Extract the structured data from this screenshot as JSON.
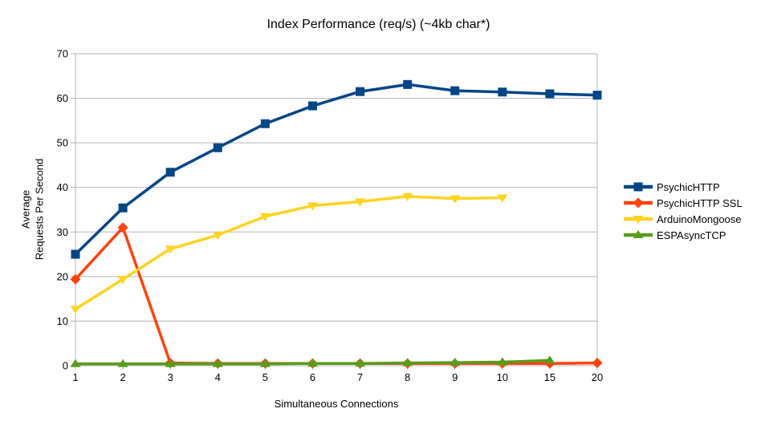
{
  "chart_data": {
    "type": "line",
    "title": "Index Performance (req/s) (~4kb char*)",
    "xlabel": "Simultaneous Connections",
    "ylabel_lines": [
      "Average",
      "Requests Per Second"
    ],
    "categories": [
      "1",
      "2",
      "3",
      "4",
      "5",
      "6",
      "7",
      "8",
      "9",
      "10",
      "15",
      "20"
    ],
    "ylim": [
      0,
      70
    ],
    "yticks": [
      0,
      10,
      20,
      30,
      40,
      50,
      60,
      70
    ],
    "grid": "horizontal-only",
    "legend_position": "right",
    "axis_color": "#b3b3b3",
    "text_color": "#000000",
    "background_color": "#ffffff",
    "series": [
      {
        "name": "PsychicHTTP",
        "color": "#004586",
        "marker": "square",
        "values": [
          25.0,
          35.4,
          43.4,
          48.9,
          54.3,
          58.3,
          61.5,
          63.1,
          61.7,
          61.4,
          61.0,
          60.7
        ]
      },
      {
        "name": "PsychicHTTP SSL",
        "color": "#ff420e",
        "marker": "diamond",
        "values": [
          19.4,
          31.0,
          0.6,
          0.5,
          0.5,
          0.5,
          0.5,
          0.5,
          0.5,
          0.5,
          0.5,
          0.6
        ]
      },
      {
        "name": "ArduinoMongoose",
        "color": "#ffd320",
        "marker": "triangle-down",
        "values": [
          12.7,
          19.4,
          26.2,
          29.3,
          33.5,
          35.9,
          36.8,
          38.0,
          37.5,
          37.7,
          null,
          null
        ]
      },
      {
        "name": "ESPAsyncTCP",
        "color": "#579d1c",
        "marker": "triangle-up",
        "values": [
          0.4,
          0.4,
          0.4,
          0.4,
          0.4,
          0.5,
          0.5,
          0.6,
          0.7,
          0.8,
          1.2,
          null
        ]
      }
    ]
  }
}
